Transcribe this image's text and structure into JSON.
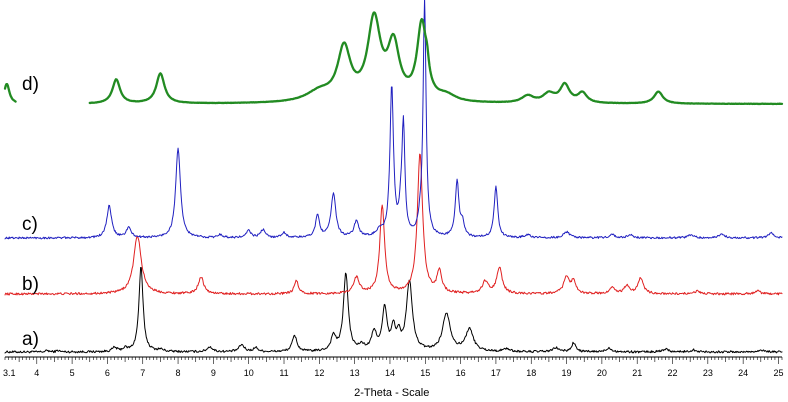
{
  "chart_data": {
    "type": "line",
    "title": "",
    "xlabel": "2-Theta - Scale",
    "ylabel": "",
    "xlim": [
      3.1,
      25.1
    ],
    "x_ticks": [
      3.1,
      4,
      5,
      6,
      7,
      8,
      9,
      10,
      11,
      12,
      13,
      14,
      15,
      16,
      17,
      18,
      19,
      20,
      21,
      22,
      23,
      24,
      25
    ],
    "x_tick_labels": [
      "3.1",
      "4",
      "5",
      "6",
      "7",
      "8",
      "9",
      "10",
      "11",
      "12",
      "13",
      "14",
      "15",
      "16",
      "17",
      "18",
      "19",
      "20",
      "21",
      "22",
      "23",
      "24",
      "25"
    ],
    "grid": false,
    "legend": "none",
    "series": [
      {
        "name": "a)",
        "color": "#000000",
        "stroke_width": 1,
        "offset": 0,
        "baseline": 2,
        "noise": 1.1,
        "segments": [
          [
            3.1,
            25.1
          ]
        ],
        "peaks": [
          [
            4.3,
            1.5,
            0.05
          ],
          [
            4.6,
            1.5,
            0.05
          ],
          [
            6.2,
            4,
            0.08
          ],
          [
            6.5,
            3,
            0.08
          ],
          [
            6.95,
            85,
            0.07
          ],
          [
            7.5,
            2,
            0.1
          ],
          [
            8.9,
            5,
            0.09
          ],
          [
            9.8,
            7,
            0.09
          ],
          [
            10.2,
            4,
            0.08
          ],
          [
            11.3,
            16,
            0.08
          ],
          [
            12.4,
            15,
            0.08
          ],
          [
            12.75,
            78,
            0.08
          ],
          [
            13.2,
            5,
            0.09
          ],
          [
            13.55,
            18,
            0.09
          ],
          [
            13.85,
            42,
            0.08
          ],
          [
            14.1,
            22,
            0.07
          ],
          [
            14.25,
            14,
            0.06
          ],
          [
            14.55,
            70,
            0.1
          ],
          [
            15.6,
            38,
            0.13
          ],
          [
            16.25,
            22,
            0.13
          ],
          [
            17.3,
            3,
            0.1
          ],
          [
            18.7,
            4,
            0.1
          ],
          [
            19.2,
            9,
            0.07
          ],
          [
            20.2,
            4,
            0.09
          ],
          [
            21.8,
            3,
            0.1
          ],
          [
            22.6,
            2,
            0.1
          ],
          [
            24.5,
            2,
            0.1
          ]
        ]
      },
      {
        "name": "b)",
        "color": "#e02020",
        "stroke_width": 1,
        "offset": 58,
        "baseline": 2,
        "noise": 1.1,
        "segments": [
          [
            3.1,
            25.1
          ]
        ],
        "peaks": [
          [
            6.85,
            58,
            0.13
          ],
          [
            8.65,
            17,
            0.09
          ],
          [
            11.35,
            13,
            0.07
          ],
          [
            13.05,
            16,
            0.1
          ],
          [
            13.78,
            88,
            0.08
          ],
          [
            14.85,
            140,
            0.09
          ],
          [
            15.4,
            22,
            0.08
          ],
          [
            16.7,
            12,
            0.1
          ],
          [
            17.1,
            26,
            0.09
          ],
          [
            19.0,
            16,
            0.1
          ],
          [
            19.2,
            12,
            0.08
          ],
          [
            20.3,
            6,
            0.1
          ],
          [
            20.7,
            8,
            0.08
          ],
          [
            21.1,
            16,
            0.09
          ],
          [
            22.7,
            3,
            0.1
          ],
          [
            24.4,
            3,
            0.1
          ]
        ]
      },
      {
        "name": "c)",
        "color": "#2020c0",
        "stroke_width": 1,
        "offset": 114,
        "baseline": 2,
        "noise": 1.0,
        "segments": [
          [
            3.1,
            25.1
          ]
        ],
        "peaks": [
          [
            6.05,
            32,
            0.08
          ],
          [
            6.6,
            10,
            0.08
          ],
          [
            8.0,
            90,
            0.08
          ],
          [
            9.2,
            3,
            0.08
          ],
          [
            10.0,
            7,
            0.08
          ],
          [
            10.4,
            8,
            0.08
          ],
          [
            11.0,
            5,
            0.08
          ],
          [
            11.95,
            22,
            0.07
          ],
          [
            12.4,
            44,
            0.08
          ],
          [
            13.05,
            16,
            0.08
          ],
          [
            13.7,
            6,
            0.1
          ],
          [
            14.05,
            150,
            0.06
          ],
          [
            14.3,
            18,
            0.05
          ],
          [
            14.38,
            110,
            0.05
          ],
          [
            14.85,
            10,
            0.07
          ],
          [
            14.98,
            235,
            0.05
          ],
          [
            15.9,
            56,
            0.06
          ],
          [
            16.05,
            14,
            0.06
          ],
          [
            17.0,
            52,
            0.06
          ],
          [
            17.9,
            3,
            0.1
          ],
          [
            19.0,
            6,
            0.1
          ],
          [
            20.3,
            3,
            0.1
          ],
          [
            20.8,
            3,
            0.1
          ],
          [
            22.5,
            3,
            0.1
          ],
          [
            23.4,
            4,
            0.1
          ],
          [
            24.8,
            5,
            0.1
          ]
        ]
      },
      {
        "name": "d)",
        "color": "#228b22",
        "stroke_width": 2.3,
        "offset": 248,
        "baseline": 2,
        "noise": 0.15,
        "segments": [
          [
            3.1,
            3.4
          ],
          [
            5.5,
            25.1
          ]
        ],
        "peaks": [
          [
            3.15,
            20,
            0.09
          ],
          [
            6.25,
            24,
            0.13
          ],
          [
            7.5,
            30,
            0.14
          ],
          [
            12.0,
            10,
            0.45
          ],
          [
            12.7,
            52,
            0.22
          ],
          [
            13.55,
            80,
            0.22
          ],
          [
            14.1,
            54,
            0.2
          ],
          [
            14.9,
            76,
            0.16
          ],
          [
            15.05,
            14,
            0.06
          ],
          [
            15.6,
            6,
            0.3
          ],
          [
            17.9,
            7,
            0.2
          ],
          [
            18.5,
            9,
            0.2
          ],
          [
            18.95,
            18,
            0.16
          ],
          [
            19.45,
            10,
            0.15
          ],
          [
            21.6,
            12,
            0.15
          ]
        ]
      }
    ]
  }
}
